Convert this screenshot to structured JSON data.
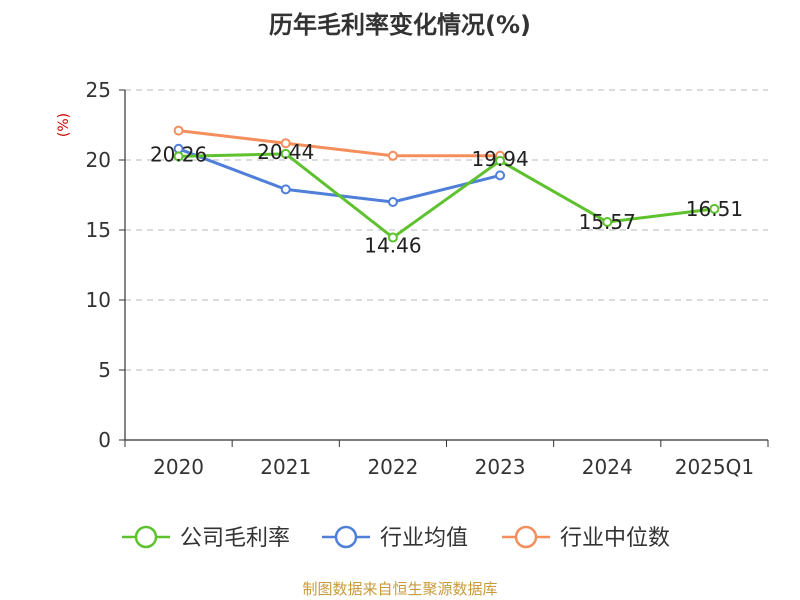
{
  "chart_data": {
    "type": "line",
    "title": "历年毛利率变化情况(%)",
    "ylabel": "(%)",
    "categories": [
      "2020",
      "2021",
      "2022",
      "2023",
      "2024",
      "2025Q1"
    ],
    "ylim": [
      0,
      25
    ],
    "yticks": [
      "0",
      "5",
      "10",
      "15",
      "20",
      "25"
    ],
    "grid": true,
    "legend_position": "bottom",
    "series": [
      {
        "name": "公司毛利率",
        "color": "#5ec22f",
        "values": [
          20.26,
          20.44,
          14.46,
          19.94,
          15.57,
          16.51
        ],
        "labels": [
          "20.26",
          "20.44",
          "14.46",
          "19.94",
          "15.57",
          "16.51"
        ]
      },
      {
        "name": "行业均值",
        "color": "#4f7fd9",
        "values": [
          20.8,
          17.9,
          17.0,
          18.9,
          null,
          null
        ]
      },
      {
        "name": "行业中位数",
        "color": "#f58e5d",
        "values": [
          22.1,
          21.2,
          20.3,
          20.3,
          null,
          null
        ]
      }
    ],
    "source": "制图数据来自恒生聚源数据库"
  }
}
